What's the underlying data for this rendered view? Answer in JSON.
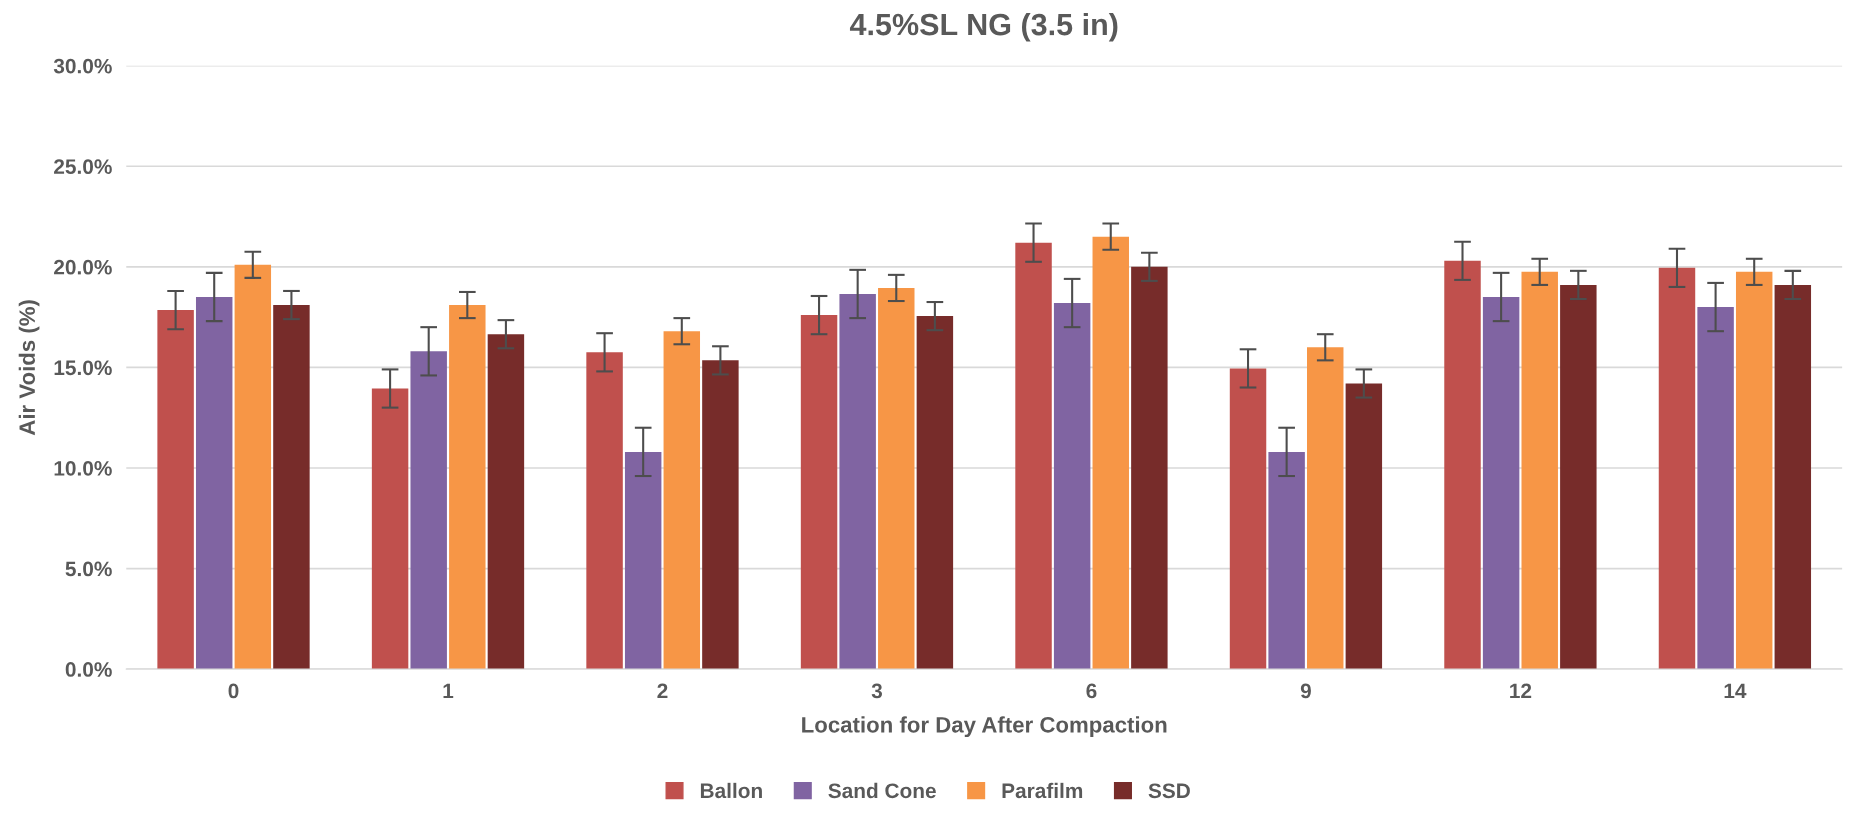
{
  "chart_data": {
    "type": "bar",
    "title": "4.5%SL NG (3.5 in)",
    "xlabel": "Location for Day After Compaction",
    "ylabel": "Air Voids (%)",
    "categories": [
      "0",
      "1",
      "2",
      "3",
      "6",
      "9",
      "12",
      "14"
    ],
    "series": [
      {
        "name": "Ballon",
        "color": "#c0504d",
        "values": [
          17.85,
          13.95,
          15.75,
          17.6,
          21.2,
          14.95,
          20.3,
          19.95
        ],
        "errors": [
          0.95,
          0.95,
          0.95,
          0.95,
          0.95,
          0.95,
          0.95,
          0.95
        ]
      },
      {
        "name": "Sand Cone",
        "color": "#8064a2",
        "values": [
          18.5,
          15.8,
          10.8,
          18.65,
          18.2,
          10.8,
          18.5,
          18.0
        ],
        "errors": [
          1.2,
          1.2,
          1.2,
          1.2,
          1.2,
          1.2,
          1.2,
          1.2
        ]
      },
      {
        "name": "Parafilm",
        "color": "#f79646",
        "values": [
          20.1,
          18.1,
          16.8,
          18.95,
          21.5,
          16.0,
          19.75,
          19.75
        ],
        "errors": [
          0.65,
          0.65,
          0.65,
          0.65,
          0.65,
          0.65,
          0.65,
          0.65
        ]
      },
      {
        "name": "SSD",
        "color": "#772c2a",
        "values": [
          18.1,
          16.65,
          15.35,
          17.55,
          20.0,
          14.2,
          19.1,
          19.1
        ],
        "errors": [
          0.7,
          0.7,
          0.7,
          0.7,
          0.7,
          0.7,
          0.7,
          0.7
        ]
      }
    ],
    "ylim": [
      0,
      30
    ],
    "yticks": [
      {
        "value": 0,
        "label": "0.0%"
      },
      {
        "value": 5,
        "label": "5.0%"
      },
      {
        "value": 10,
        "label": "10.0%"
      },
      {
        "value": 15,
        "label": "15.0%"
      },
      {
        "value": 20,
        "label": "20.0%"
      },
      {
        "value": 25,
        "label": "25.0%"
      },
      {
        "value": 30,
        "label": "30.0%"
      }
    ],
    "grid": "y",
    "legend": "bottom"
  }
}
